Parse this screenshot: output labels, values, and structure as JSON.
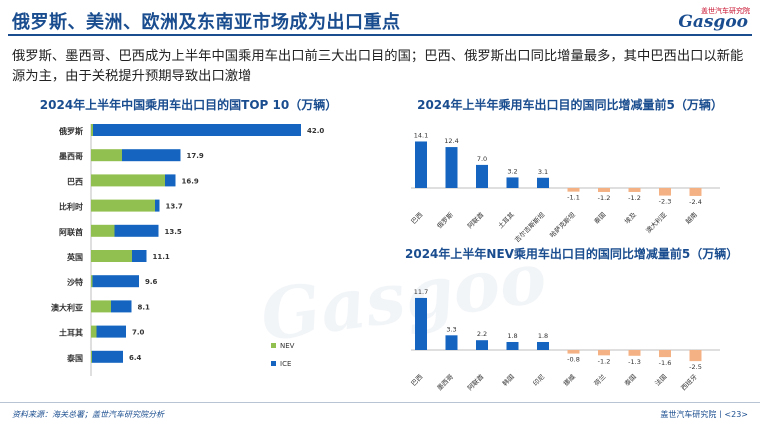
{
  "header": {
    "title": "俄罗斯、美洲、欧洲及东南亚市场成为出口重点"
  },
  "logo": {
    "brand_text": "盖世汽车研究院",
    "word": "Gasgoo"
  },
  "subtitle": "俄罗斯、墨西哥、巴西成为上半年中国乘用车出口前三大出口目的国；巴西、俄罗斯出口同比增量最多，其中巴西出口以新能源为主，由于关税提升预期导致出口激增",
  "watermark": "Gasgoo",
  "footer": {
    "source": "资料来源：海关总署；盖世汽车研究院分析",
    "org": "盖世汽车研究院丨<23>"
  },
  "colors": {
    "ice": "#1565c0",
    "nev": "#92c050",
    "increase": "#1565c0",
    "decrease": "#f4b183",
    "title": "#1a4d8f"
  },
  "chart_data": [
    {
      "type": "bar",
      "orientation": "horizontal",
      "stacked": true,
      "title": "2024年上半年中国乘用车出口目的国TOP 10（万辆）",
      "categories": [
        "俄罗斯",
        "墨西哥",
        "巴西",
        "比利时",
        "阿联酋",
        "英国",
        "沙特",
        "澳大利亚",
        "土耳其",
        "泰国"
      ],
      "totals": [
        42.0,
        17.9,
        16.9,
        13.7,
        13.5,
        11.1,
        9.6,
        8.1,
        7.0,
        6.4
      ],
      "total_labels": [
        "42.0",
        "17.9",
        "16.9",
        "13.7",
        "13.5",
        "11.1",
        "9.6",
        "8.1",
        "7.0",
        "6.4"
      ],
      "series": [
        {
          "name": "NEV",
          "values": [
            0.4,
            6.2,
            14.8,
            12.8,
            4.7,
            8.2,
            0.3,
            4.0,
            1.1,
            0.2
          ]
        },
        {
          "name": "ICE",
          "values": [
            41.6,
            11.7,
            2.1,
            0.9,
            8.8,
            2.9,
            9.3,
            4.1,
            5.9,
            6.2
          ]
        }
      ],
      "xlim": [
        0,
        45
      ],
      "legend": "bottom-right"
    },
    {
      "type": "bar",
      "title": "2024年上半年乘用车出口目的国同比增减量前5（万辆）",
      "categories": [
        "巴西",
        "俄罗斯",
        "阿联酋",
        "土耳其",
        "吉尔吉斯斯坦",
        "哈萨克斯坦",
        "泰国",
        "埃及",
        "澳大利亚",
        "越南"
      ],
      "values": [
        14.1,
        12.4,
        7.0,
        3.2,
        3.1,
        -1.1,
        -1.2,
        -1.2,
        -2.3,
        -2.4
      ],
      "labels": [
        "14.1",
        "12.4",
        "7.0",
        "3.2",
        "3.1",
        "-1.1",
        "-1.2",
        "-1.2",
        "-2.3",
        "-2.4"
      ],
      "ylim": [
        -3,
        15
      ]
    },
    {
      "type": "bar",
      "title": "2024年上半年NEV乘用车出口目的国同比增减量前5（万辆）",
      "categories": [
        "巴西",
        "墨西哥",
        "阿联酋",
        "韩国",
        "印尼",
        "挪威",
        "荷兰",
        "泰国",
        "法国",
        "西班牙"
      ],
      "values": [
        11.7,
        3.3,
        2.2,
        1.8,
        1.8,
        -0.8,
        -1.2,
        -1.3,
        -1.6,
        -2.5
      ],
      "labels": [
        "11.7",
        "3.3",
        "2.2",
        "1.8",
        "1.8",
        "-0.8",
        "-1.2",
        "-1.3",
        "-1.6",
        "-2.5"
      ],
      "ylim": [
        -3,
        12.5
      ]
    }
  ]
}
